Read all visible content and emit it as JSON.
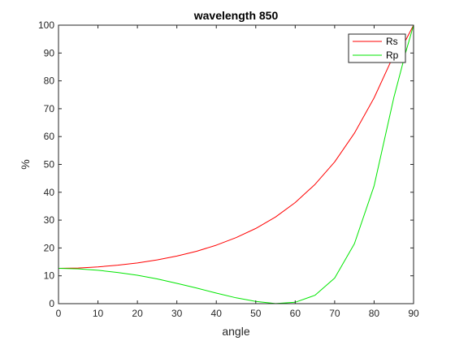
{
  "chart_data": {
    "type": "line",
    "title": "wavelength  850",
    "xlabel": "angle",
    "ylabel": "%",
    "xlim": [
      0,
      90
    ],
    "ylim": [
      0,
      100
    ],
    "xticks": [
      0,
      10,
      20,
      30,
      40,
      50,
      60,
      70,
      80,
      90
    ],
    "yticks": [
      0,
      10,
      20,
      30,
      40,
      50,
      60,
      70,
      80,
      90,
      100
    ],
    "grid": false,
    "legend": "top-right",
    "x": [
      0,
      5,
      10,
      15,
      20,
      25,
      30,
      35,
      40,
      45,
      50,
      55,
      60,
      65,
      70,
      75,
      80,
      85,
      88,
      90
    ],
    "series": [
      {
        "name": "Rs",
        "color": "#ff0000",
        "values": [
          12.7,
          12.8,
          13.2,
          13.8,
          14.6,
          15.7,
          17.1,
          18.8,
          21.0,
          23.7,
          27.0,
          31.1,
          36.3,
          42.8,
          50.9,
          61.2,
          73.9,
          89.3,
          94.6,
          100
        ]
      },
      {
        "name": "Rp",
        "color": "#00e600",
        "values": [
          12.7,
          12.5,
          12.0,
          11.2,
          10.2,
          8.9,
          7.3,
          5.6,
          3.8,
          2.1,
          0.8,
          0.05,
          0.5,
          3.0,
          9.2,
          21.5,
          42.3,
          74.0,
          90.2,
          100
        ]
      }
    ]
  }
}
